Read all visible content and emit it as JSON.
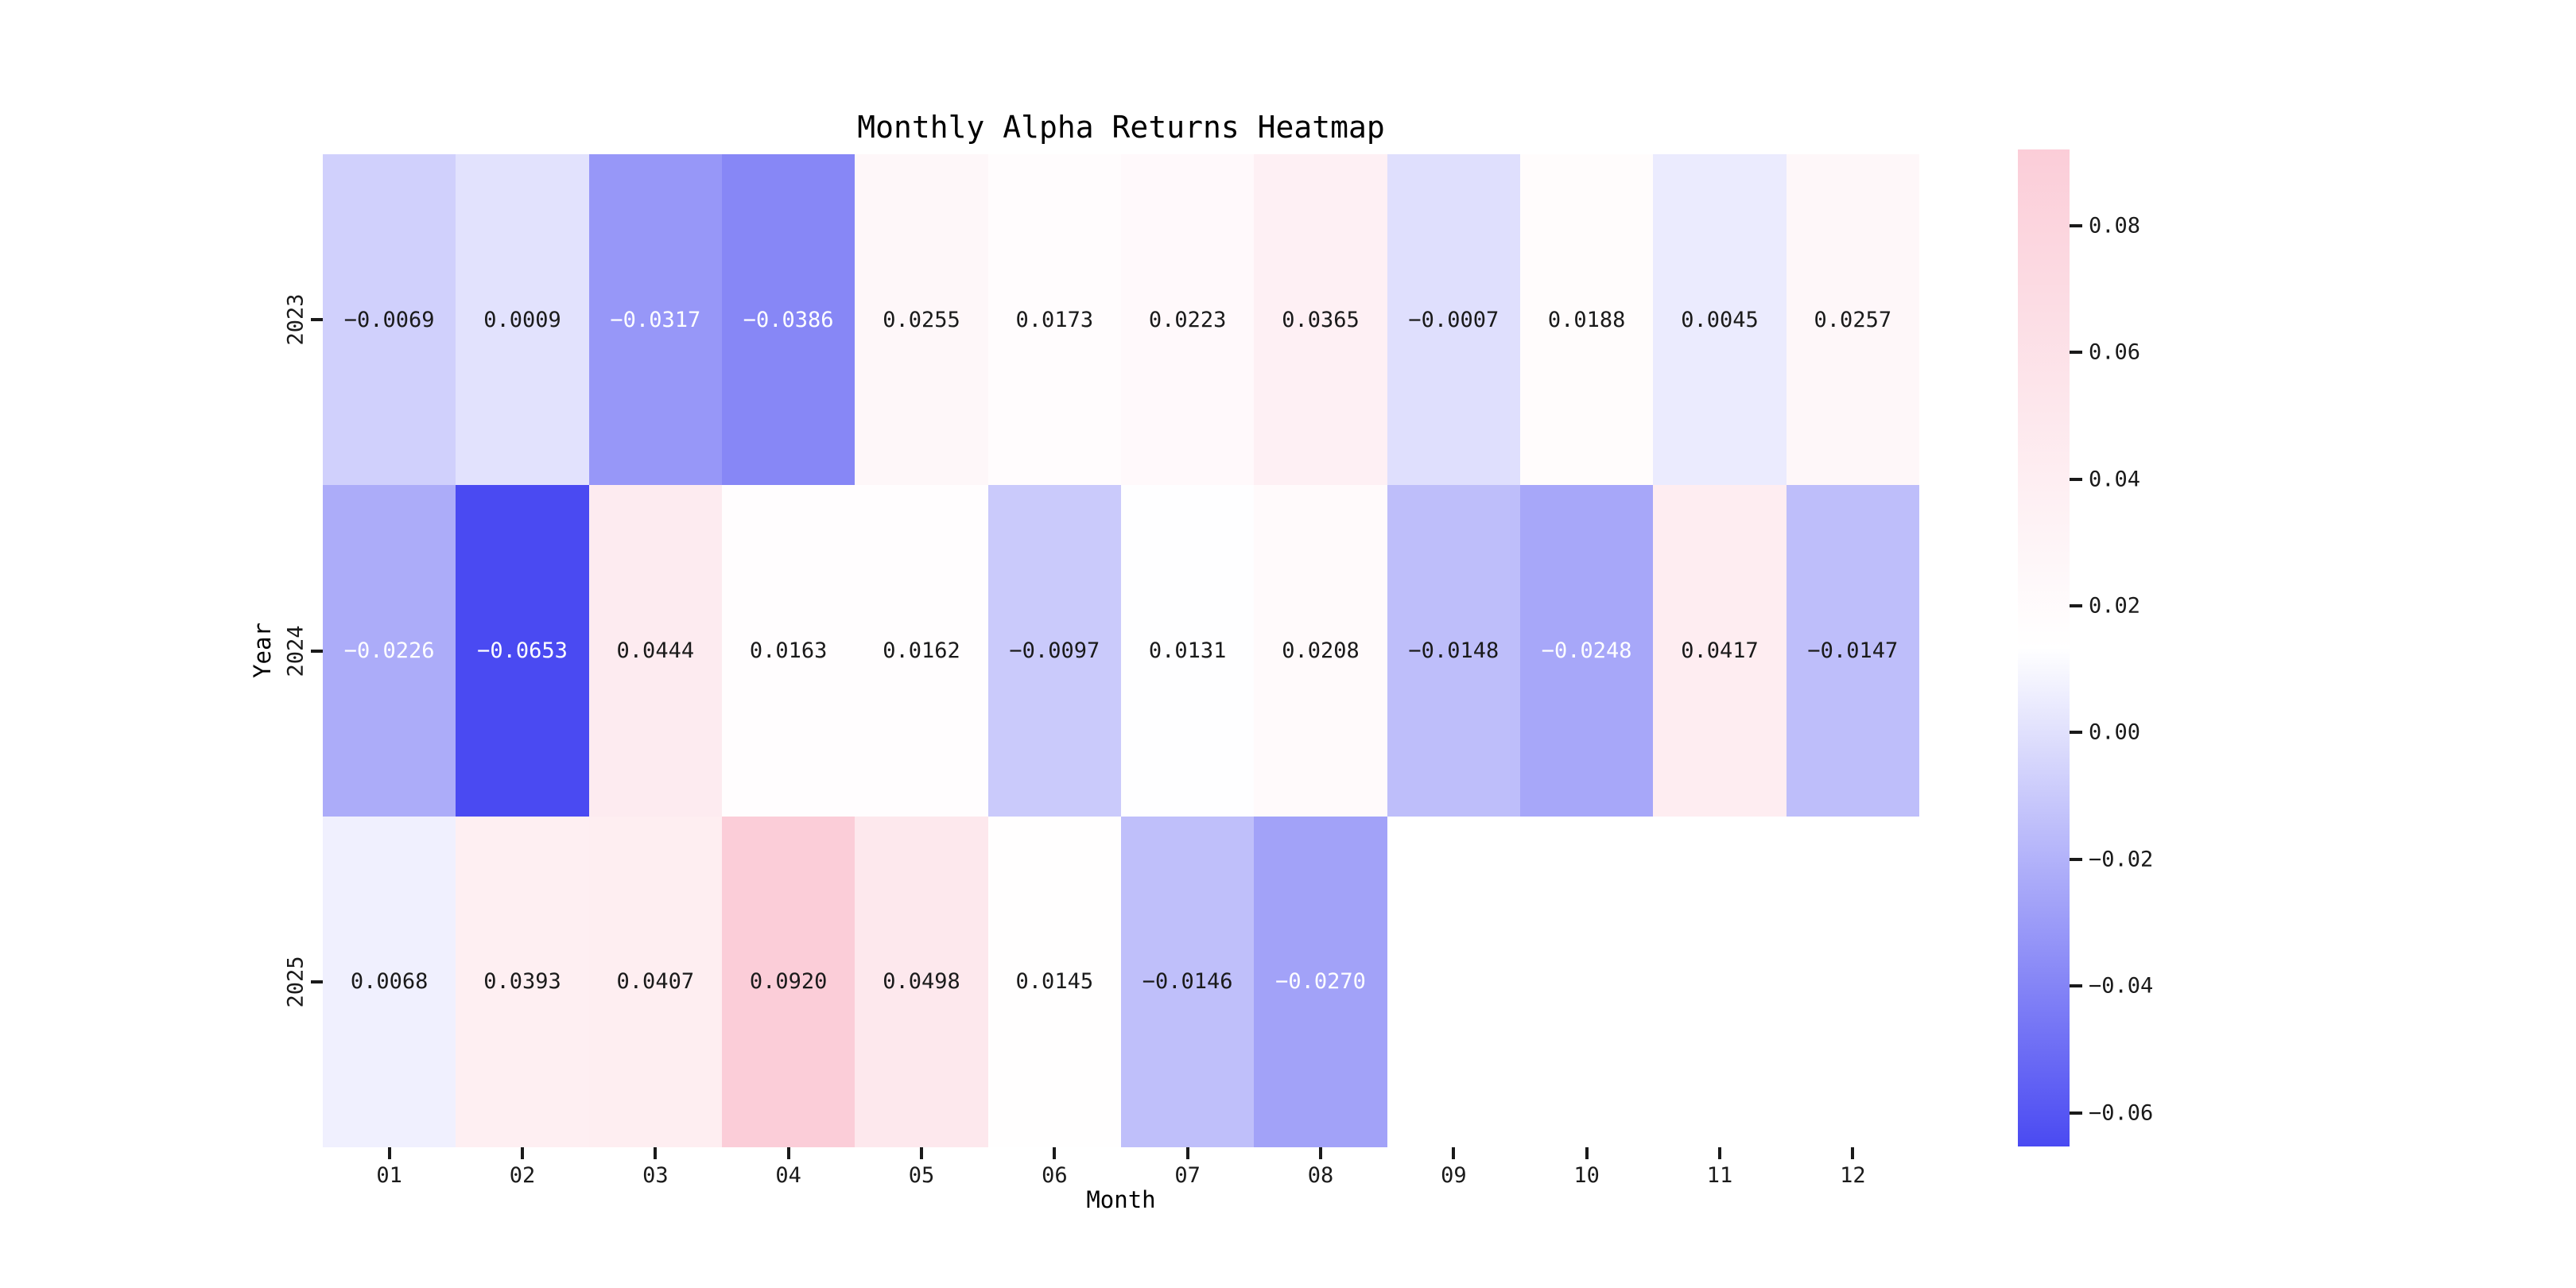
{
  "title": "Monthly Alpha Returns Heatmap",
  "chart_data": {
    "type": "heatmap",
    "title": "Monthly Alpha Returns Heatmap",
    "xlabel": "Month",
    "ylabel": "Year",
    "x_categories": [
      "01",
      "02",
      "03",
      "04",
      "05",
      "06",
      "07",
      "08",
      "09",
      "10",
      "11",
      "12"
    ],
    "y_categories": [
      "2023",
      "2024",
      "2025"
    ],
    "series": [
      {
        "name": "2023",
        "values": [
          -0.0069,
          0.0009,
          -0.0317,
          -0.0386,
          0.0255,
          0.0173,
          0.0223,
          0.0365,
          -0.0007,
          0.0188,
          0.0045,
          0.0257
        ]
      },
      {
        "name": "2024",
        "values": [
          -0.0226,
          -0.0653,
          0.0444,
          0.0163,
          0.0162,
          -0.0097,
          0.0131,
          0.0208,
          -0.0148,
          -0.0248,
          0.0417,
          -0.0147
        ]
      },
      {
        "name": "2025",
        "values": [
          0.0068,
          0.0393,
          0.0407,
          0.092,
          0.0498,
          0.0145,
          -0.0146,
          -0.027,
          null,
          null,
          null,
          null
        ]
      }
    ],
    "vmin": -0.0653,
    "vmax": 0.092,
    "colorbar_ticks": [
      0.08,
      0.06,
      0.04,
      0.02,
      0.0,
      -0.02,
      -0.04,
      -0.06
    ],
    "colors": {
      "low": "#4a4af2",
      "mid": "#ffffff",
      "high": "#fbcdd8",
      "text_dark": "#1a1a1a",
      "text_light": "#ffffff",
      "empty_cell": "#ffffff"
    },
    "legend_position": "right-colorbar",
    "grid": false,
    "cell_value_decimals": 4,
    "tick_decimals": 2
  }
}
